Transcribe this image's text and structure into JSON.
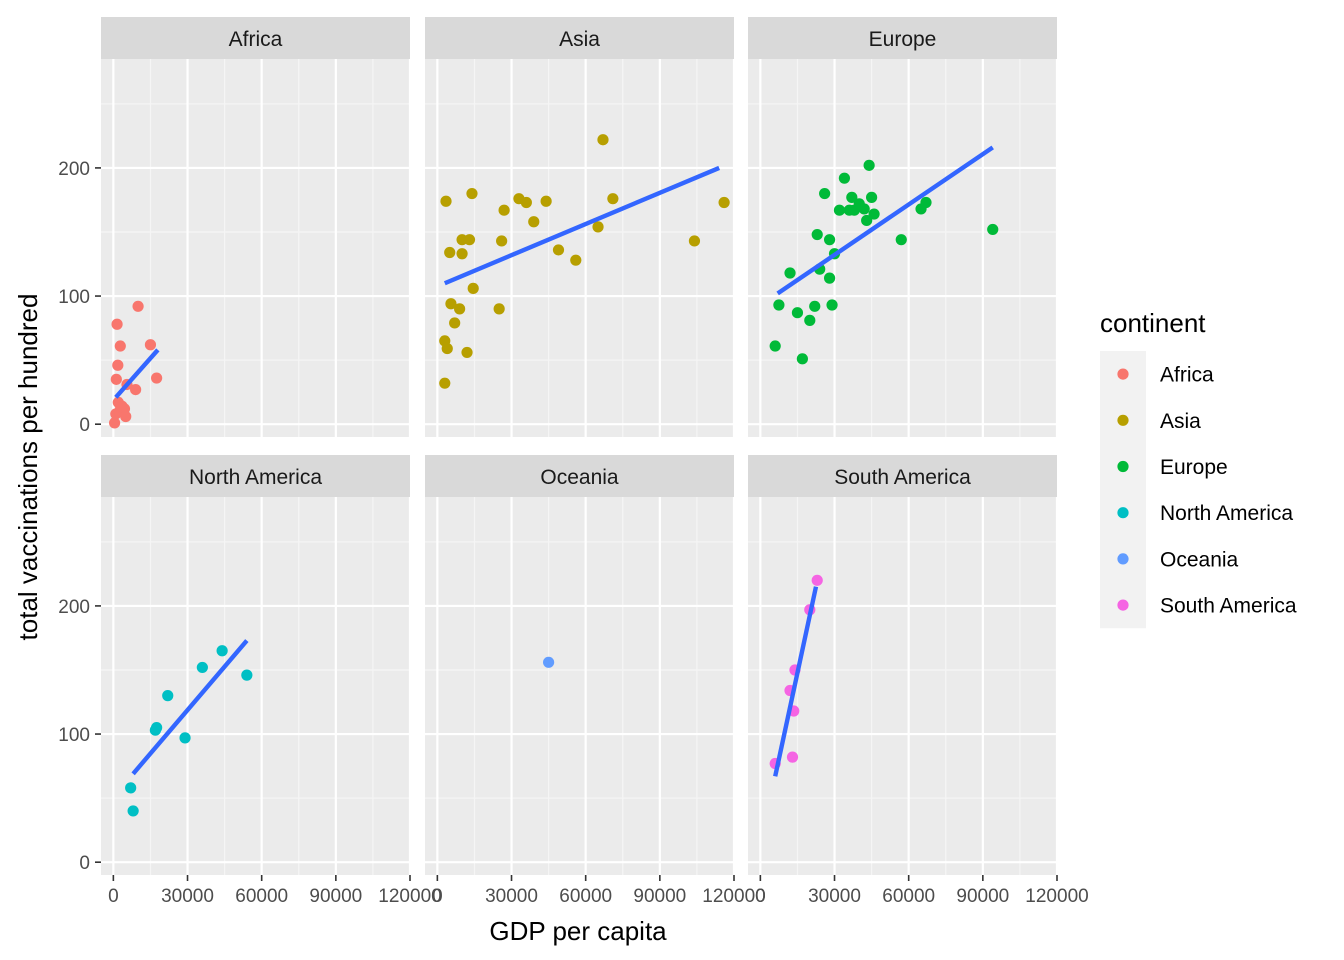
{
  "chart_data": {
    "type": "scatter",
    "xlabel": "GDP per capita",
    "ylabel": "total vaccinations per hundred",
    "xlim": [
      -5000,
      120000
    ],
    "ylim": [
      -10,
      285
    ],
    "x_ticks": [
      0,
      30000,
      60000,
      90000,
      120000
    ],
    "x_tick_labels": [
      "0",
      "30000",
      "60000",
      "90000",
      "120000"
    ],
    "y_ticks": [
      0,
      100,
      200
    ],
    "y_tick_labels": [
      "0",
      "100",
      "200"
    ],
    "grid": true,
    "trend": "linear fit per panel",
    "trend_color": "#3366FF",
    "legend": {
      "title": "continent",
      "position": "right"
    },
    "facets": [
      {
        "name": "Africa",
        "color": "#F8766D",
        "points": [
          [
            500,
            1
          ],
          [
            1000,
            8
          ],
          [
            1200,
            35
          ],
          [
            1500,
            78
          ],
          [
            1800,
            46
          ],
          [
            2000,
            17
          ],
          [
            2500,
            10
          ],
          [
            2800,
            61
          ],
          [
            3000,
            13
          ],
          [
            3500,
            14
          ],
          [
            4500,
            12
          ],
          [
            5000,
            6
          ],
          [
            5500,
            31
          ],
          [
            9000,
            27
          ],
          [
            10000,
            92
          ],
          [
            15000,
            62
          ],
          [
            17500,
            36
          ]
        ],
        "fit": [
          [
            1000,
            21
          ],
          [
            18000,
            58
          ]
        ]
      },
      {
        "name": "Asia",
        "color": "#B79F00",
        "points": [
          [
            3000,
            32
          ],
          [
            3000,
            65
          ],
          [
            3500,
            174
          ],
          [
            4000,
            59
          ],
          [
            5000,
            134
          ],
          [
            5500,
            94
          ],
          [
            7000,
            79
          ],
          [
            9000,
            90
          ],
          [
            10000,
            144
          ],
          [
            10000,
            133
          ],
          [
            12000,
            56
          ],
          [
            13000,
            144
          ],
          [
            14000,
            180
          ],
          [
            14500,
            106
          ],
          [
            25000,
            90
          ],
          [
            26000,
            143
          ],
          [
            27000,
            167
          ],
          [
            33000,
            176
          ],
          [
            36000,
            173
          ],
          [
            39000,
            158
          ],
          [
            44000,
            174
          ],
          [
            49000,
            136
          ],
          [
            56000,
            128
          ],
          [
            65000,
            154
          ],
          [
            67000,
            222
          ],
          [
            71000,
            176
          ],
          [
            104000,
            143
          ],
          [
            116000,
            173
          ]
        ],
        "fit": [
          [
            3000,
            110
          ],
          [
            114000,
            200
          ]
        ]
      },
      {
        "name": "Europe",
        "color": "#00BA38",
        "points": [
          [
            6000,
            61
          ],
          [
            7500,
            93
          ],
          [
            12000,
            118
          ],
          [
            15000,
            87
          ],
          [
            17000,
            51
          ],
          [
            20000,
            81
          ],
          [
            22000,
            92
          ],
          [
            23000,
            148
          ],
          [
            24000,
            121
          ],
          [
            26000,
            180
          ],
          [
            28000,
            114
          ],
          [
            28000,
            144
          ],
          [
            29000,
            93
          ],
          [
            30000,
            133
          ],
          [
            32000,
            167
          ],
          [
            34000,
            192
          ],
          [
            36000,
            167
          ],
          [
            37000,
            177
          ],
          [
            38000,
            167
          ],
          [
            40000,
            172
          ],
          [
            42000,
            168
          ],
          [
            43000,
            159
          ],
          [
            44000,
            202
          ],
          [
            45000,
            177
          ],
          [
            46000,
            164
          ],
          [
            57000,
            144
          ],
          [
            65000,
            168
          ],
          [
            67000,
            173
          ],
          [
            94000,
            152
          ]
        ],
        "fit": [
          [
            7000,
            102
          ],
          [
            94000,
            216
          ]
        ]
      },
      {
        "name": "North America",
        "color": "#00BFC4",
        "points": [
          [
            7000,
            58
          ],
          [
            8000,
            40
          ],
          [
            17000,
            103
          ],
          [
            17500,
            105
          ],
          [
            22000,
            130
          ],
          [
            29000,
            97
          ],
          [
            36000,
            152
          ],
          [
            44000,
            165
          ],
          [
            54000,
            146
          ]
        ],
        "fit": [
          [
            8000,
            69
          ],
          [
            54000,
            173
          ]
        ]
      },
      {
        "name": "Oceania",
        "color": "#619CFF",
        "points": [
          [
            45000,
            156
          ]
        ]
      },
      {
        "name": "South America",
        "color": "#F564E3",
        "points": [
          [
            6000,
            77
          ],
          [
            12000,
            134
          ],
          [
            13000,
            82
          ],
          [
            13500,
            118
          ],
          [
            14000,
            150
          ],
          [
            20000,
            197
          ],
          [
            23000,
            220
          ]
        ],
        "fit": [
          [
            6000,
            67
          ],
          [
            22500,
            215
          ]
        ]
      }
    ]
  }
}
